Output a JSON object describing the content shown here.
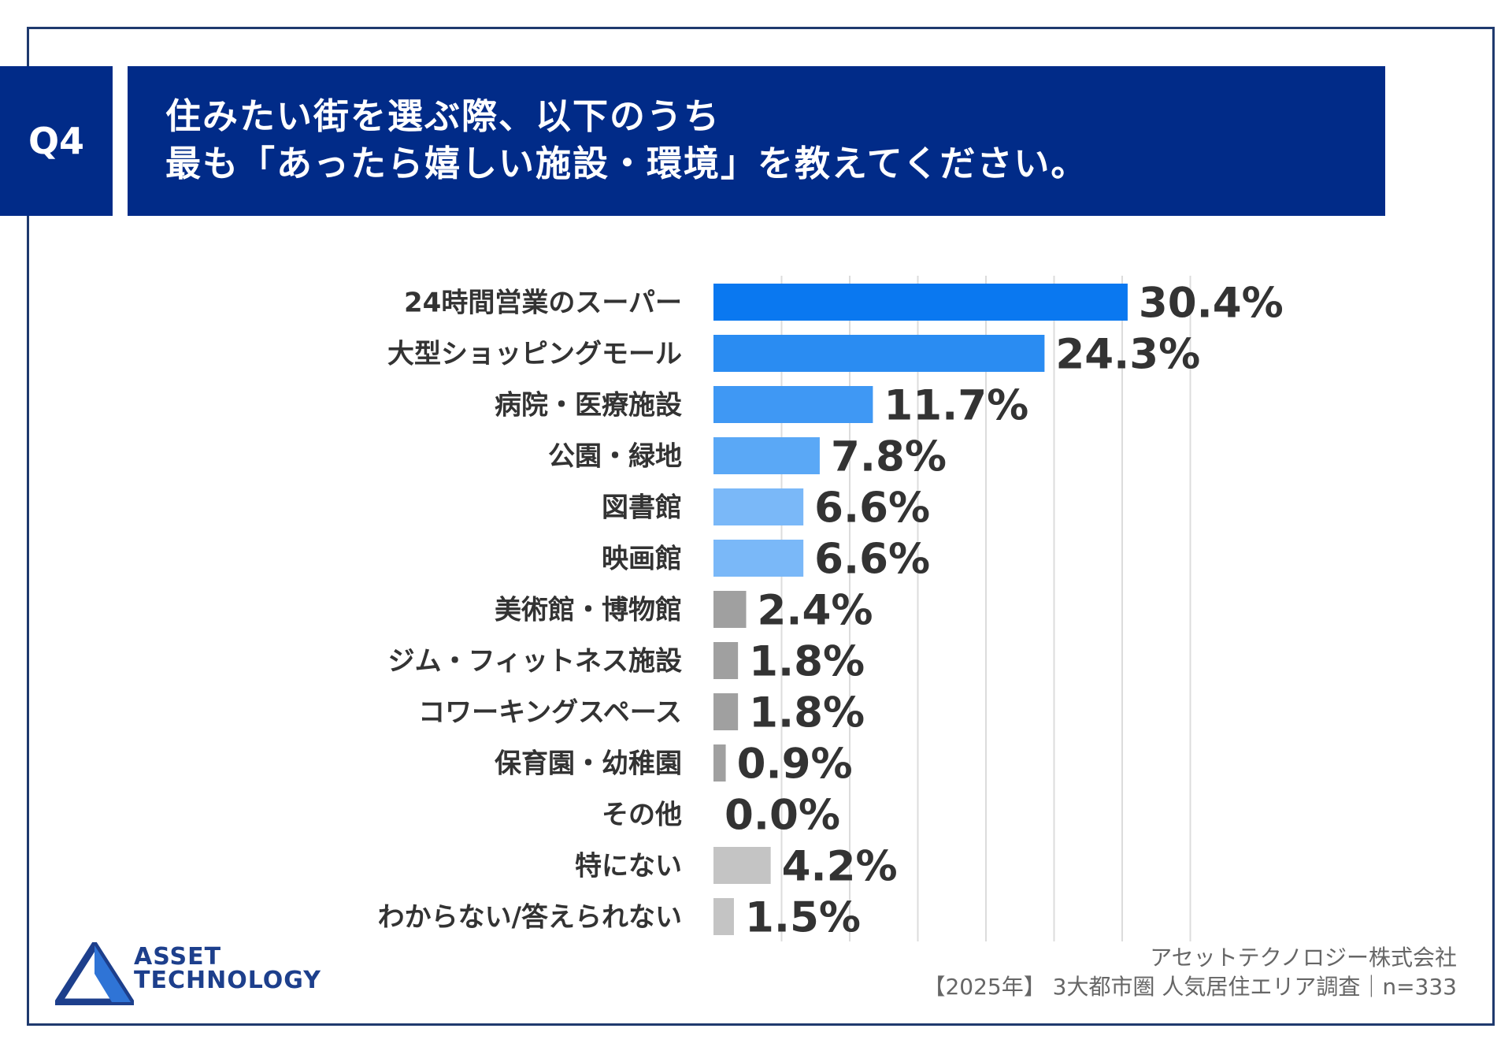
{
  "header": {
    "question_no": "Q4",
    "title_line1": "住みたい街を選ぶ際、以下のうち",
    "title_line2": "最も「あったら嬉しい施設・環境」を教えてください。"
  },
  "chart_data": {
    "type": "bar",
    "orientation": "horizontal",
    "categories": [
      "24時間営業のスーパー",
      "大型ショッピングモール",
      "病院・医療施設",
      "公園・緑地",
      "図書館",
      "映画館",
      "美術館・博物館",
      "ジム・フィットネス施設",
      "コワーキングスペース",
      "保育園・幼稚園",
      "その他",
      "特にない",
      "わからない/答えられない"
    ],
    "values": [
      30.4,
      24.3,
      11.7,
      7.8,
      6.6,
      6.6,
      2.4,
      1.8,
      1.8,
      0.9,
      0.0,
      4.2,
      1.5
    ],
    "value_labels": [
      "30.4%",
      "24.3%",
      "11.7%",
      "7.8%",
      "6.6%",
      "6.6%",
      "2.4%",
      "1.8%",
      "1.8%",
      "0.9%",
      "0.0%",
      "4.2%",
      "1.5%"
    ],
    "bar_colors": [
      "#0a78f0",
      "#2a8cf2",
      "#3f98f4",
      "#5aa8f6",
      "#7ab8f8",
      "#7ab8f8",
      "#a0a0a0",
      "#a0a0a0",
      "#a0a0a0",
      "#a0a0a0",
      "#a0a0a0",
      "#c4c4c4",
      "#c4c4c4"
    ],
    "xlim": [
      0,
      35
    ],
    "grid": true
  },
  "footer": {
    "company": "アセットテクノロジー株式会社",
    "survey": "【2025年】 3大都市圏 人気居住エリア調査｜n=333"
  },
  "logo": {
    "line1": "ASSET",
    "line2": "TECHNOLOGY",
    "color": "#1d3f8c"
  }
}
